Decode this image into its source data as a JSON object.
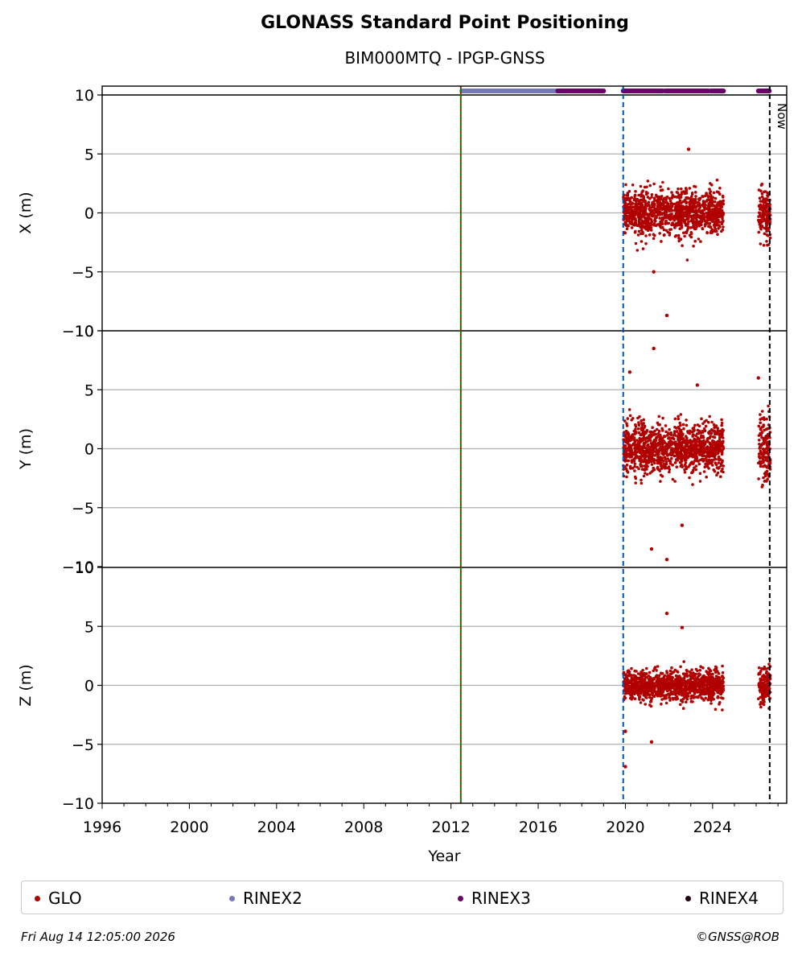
{
  "chart_data": {
    "type": "scatter",
    "title": "GLONASS Standard Point Positioning",
    "subtitle": "BIM000MTQ - IPGP-GNSS",
    "xlabel": "Year",
    "xlim": [
      1996,
      2027.4
    ],
    "x_ticks": [
      "1996",
      "2000",
      "2004",
      "2008",
      "2012",
      "2016",
      "2020",
      "2024"
    ],
    "y_ticks": [
      "−10",
      "−5",
      "0",
      "5",
      "10"
    ],
    "grid": true,
    "legend_position": "bottom",
    "panels": [
      {
        "ylabel": "X (m)",
        "ylim": [
          -10,
          10
        ]
      },
      {
        "ylabel": "Y (m)",
        "ylim": [
          -10,
          10
        ]
      },
      {
        "ylabel": "Z (m)",
        "ylim": [
          -10,
          10
        ]
      }
    ],
    "vertical_lines": [
      {
        "x": 2012.45,
        "color": "#008000",
        "style": "dashed-green-red"
      },
      {
        "x": 2019.9,
        "color": "#0050b0",
        "style": "dashed"
      },
      {
        "x": 2026.62,
        "color": "#000000",
        "style": "dashed",
        "label": "Now"
      }
    ],
    "rinex_bars": [
      {
        "name": "RINEX2",
        "color": "#7777bb",
        "ranges": [
          [
            2012.5,
            2016.9
          ]
        ]
      },
      {
        "name": "RINEX3",
        "color": "#6a006a",
        "ranges": [
          [
            2016.9,
            2019.0
          ],
          [
            2019.9,
            2021.7
          ],
          [
            2021.8,
            2023.8
          ],
          [
            2023.9,
            2024.5
          ],
          [
            2026.1,
            2026.6
          ]
        ]
      }
    ],
    "series": [
      {
        "name": "GLO",
        "color": "#b00000",
        "segments": [
          [
            2019.9,
            2024.5
          ],
          [
            2026.1,
            2026.65
          ]
        ],
        "spread": [
          {
            "start": 2019.9,
            "end": 2024.5,
            "x_sd": 0.9,
            "y_sd": 1.0,
            "z_sd": 0.6
          },
          {
            "start": 2026.1,
            "end": 2026.65,
            "x_sd": 1.1,
            "y_sd": 1.5,
            "z_sd": 0.8
          }
        ],
        "outliers": [
          {
            "x": 2021.9,
            "panel": "X",
            "y": -8.7
          },
          {
            "x": 2022.9,
            "panel": "X",
            "y": 5.4
          },
          {
            "x": 2021.3,
            "panel": "X",
            "y": -5.0
          },
          {
            "x": 2021.3,
            "panel": "Y",
            "y": 8.5
          },
          {
            "x": 2020.2,
            "panel": "Y",
            "y": 6.5
          },
          {
            "x": 2021.9,
            "panel": "Y",
            "y": -9.4
          },
          {
            "x": 2021.2,
            "panel": "Y",
            "y": -8.5
          },
          {
            "x": 2023.3,
            "panel": "Y",
            "y": 5.4
          },
          {
            "x": 2026.1,
            "panel": "Y",
            "y": 6.0
          },
          {
            "x": 2022.6,
            "panel": "Y",
            "y": -6.5
          },
          {
            "x": 2020.0,
            "panel": "Z",
            "y": -6.9
          },
          {
            "x": 2020.0,
            "panel": "Z",
            "y": -3.9
          },
          {
            "x": 2021.9,
            "panel": "Z",
            "y": 6.1
          },
          {
            "x": 2022.6,
            "panel": "Z",
            "y": 4.9
          },
          {
            "x": 2021.2,
            "panel": "Z",
            "y": -4.8
          }
        ]
      }
    ],
    "legend": [
      {
        "label": "GLO",
        "color": "#b00000"
      },
      {
        "label": "RINEX2",
        "color": "#7777bb"
      },
      {
        "label": "RINEX3",
        "color": "#6a006a"
      },
      {
        "label": "RINEX4",
        "color": "#200010"
      }
    ]
  },
  "footer": {
    "timestamp": "Fri Aug 14 12:05:00 2026",
    "credit": "©GNSS@ROB"
  }
}
